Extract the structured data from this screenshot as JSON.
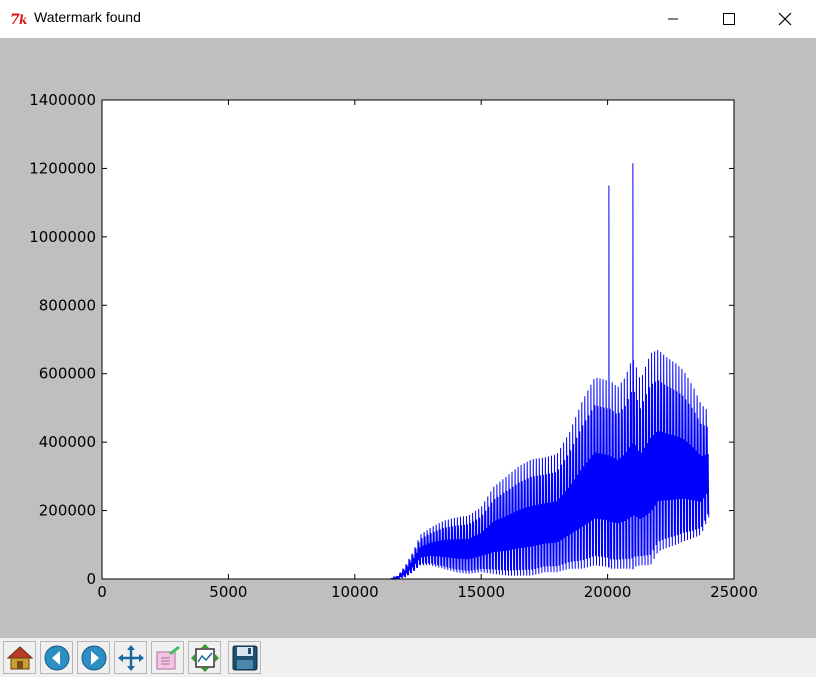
{
  "window": {
    "title": "Watermark found",
    "app_icon": "tk-feather-icon",
    "controls": [
      "minimize-icon",
      "maximize-icon",
      "close-icon"
    ]
  },
  "colors": {
    "figure_bg": "#bfbfbf",
    "plot_bg": "#ffffff",
    "line": "#0000ff",
    "toolbar_bg": "#f0f0f0"
  },
  "toolbar": {
    "buttons": [
      "home-icon",
      "back-icon",
      "forward-icon",
      "pan-icon",
      "zoom-icon",
      "configure-subplots-icon",
      "save-icon"
    ]
  },
  "chart_data": {
    "type": "line",
    "title": "",
    "xlabel": "",
    "ylabel": "",
    "xlim": [
      0,
      25000
    ],
    "ylim": [
      0,
      1400000
    ],
    "xticks": [
      0,
      5000,
      10000,
      15000,
      20000,
      25000
    ],
    "yticks": [
      0,
      200000,
      400000,
      600000,
      800000,
      1000000,
      1200000,
      1400000
    ],
    "xtick_labels": [
      "0",
      "5000",
      "10000",
      "15000",
      "20000",
      "25000"
    ],
    "ytick_labels": [
      "0",
      "200000",
      "400000",
      "600000",
      "800000",
      "1000000",
      "1200000",
      "1400000"
    ],
    "grid": false,
    "series": [
      {
        "color": "#0000ff",
        "x": [
          0,
          11400,
          11700,
          12000,
          12300,
          12600,
          13000,
          13500,
          14000,
          14500,
          15000,
          15500,
          16000,
          16500,
          17000,
          17500,
          18000,
          18500,
          19000,
          19500,
          20000,
          20050,
          20100,
          20400,
          20700,
          20950,
          21000,
          21050,
          21300,
          21700,
          22000,
          22300,
          22700,
          23000,
          23400,
          23700,
          24000
        ],
        "envelope_upper": [
          0,
          0,
          10000,
          40000,
          80000,
          130000,
          150000,
          170000,
          180000,
          185000,
          210000,
          270000,
          300000,
          330000,
          350000,
          355000,
          365000,
          430000,
          520000,
          590000,
          580000,
          1150000,
          580000,
          560000,
          590000,
          640000,
          1215000,
          640000,
          580000,
          660000,
          670000,
          650000,
          630000,
          610000,
          560000,
          510000,
          490000
        ],
        "envelope_lower": [
          0,
          0,
          0,
          5000,
          20000,
          40000,
          40000,
          30000,
          20000,
          15000,
          20000,
          15000,
          10000,
          10000,
          10000,
          20000,
          20000,
          30000,
          30000,
          40000,
          35000,
          35000,
          30000,
          30000,
          30000,
          30000,
          30000,
          35000,
          40000,
          40000,
          80000,
          90000,
          100000,
          110000,
          120000,
          130000,
          180000
        ]
      }
    ]
  }
}
